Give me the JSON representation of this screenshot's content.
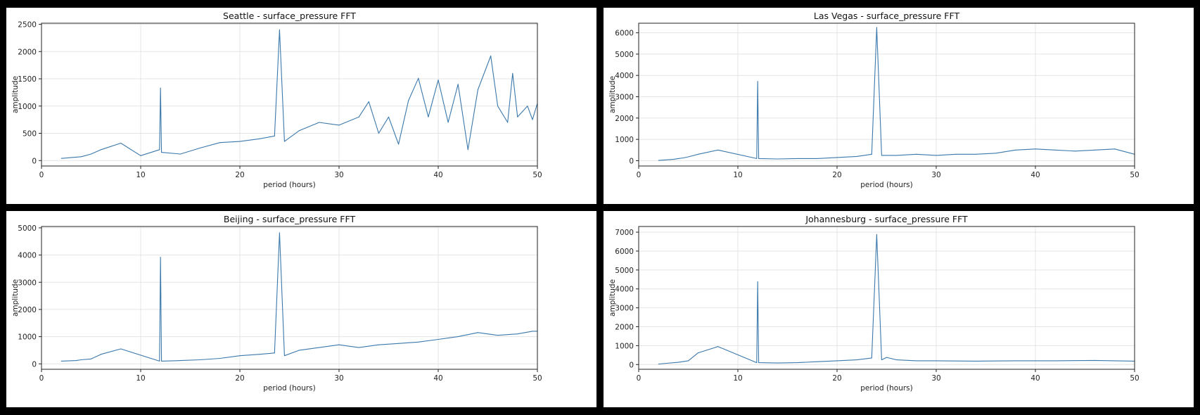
{
  "colors": {
    "line": "#3b78ab",
    "grid": "#e4e4e4",
    "axis": "#222222",
    "background": "#000000",
    "panel": "#ffffff"
  },
  "chart_data": [
    {
      "type": "line",
      "title": "Seattle - surface_pressure FFT",
      "xlabel": "period (hours)",
      "ylabel": "amplitude",
      "xlim": [
        0,
        50
      ],
      "ylim": [
        -100,
        2520
      ],
      "xticks": [
        "0",
        "10",
        "20",
        "30",
        "40",
        "50"
      ],
      "yticks": [
        "0",
        "500",
        "1000",
        "1500",
        "2000",
        "2500"
      ],
      "grid": true,
      "series": [
        {
          "x": [
            2,
            4,
            5,
            6,
            8,
            10,
            11.9,
            12,
            12.1,
            14,
            16,
            18,
            20,
            22,
            23.5,
            24,
            24.5,
            26,
            28,
            30,
            32,
            33,
            34,
            35,
            36,
            37,
            38,
            39,
            40,
            41,
            42,
            43,
            44,
            45.3,
            46,
            47,
            47.5,
            48,
            49,
            49.5,
            50
          ],
          "y": [
            40,
            70,
            120,
            200,
            320,
            90,
            200,
            1330,
            150,
            120,
            230,
            330,
            350,
            400,
            450,
            2400,
            350,
            550,
            700,
            650,
            800,
            1080,
            500,
            800,
            300,
            1100,
            1510,
            800,
            1480,
            700,
            1400,
            200,
            1300,
            1920,
            1000,
            700,
            1600,
            800,
            1000,
            750,
            1050
          ]
        }
      ]
    },
    {
      "type": "line",
      "title": "Las Vegas - surface_pressure FFT",
      "xlabel": "period (hours)",
      "ylabel": "amplitude",
      "xlim": [
        0,
        50
      ],
      "ylim": [
        -250,
        6450
      ],
      "xticks": [
        "0",
        "10",
        "20",
        "30",
        "40",
        "50"
      ],
      "yticks": [
        "0",
        "1000",
        "2000",
        "3000",
        "4000",
        "5000",
        "6000"
      ],
      "grid": true,
      "series": [
        {
          "x": [
            2,
            3.5,
            4,
            4.5,
            5,
            6,
            8,
            11.9,
            12,
            12.1,
            14,
            16,
            18,
            20,
            22,
            23.5,
            24,
            24.5,
            26,
            28,
            30,
            32,
            34,
            36,
            38,
            40,
            42,
            44,
            46,
            48,
            50
          ],
          "y": [
            10,
            60,
            100,
            130,
            180,
            300,
            500,
            100,
            3720,
            100,
            80,
            100,
            100,
            150,
            200,
            300,
            6250,
            250,
            250,
            300,
            250,
            300,
            300,
            350,
            500,
            550,
            500,
            450,
            500,
            550,
            300
          ]
        }
      ]
    },
    {
      "type": "line",
      "title": "Beijing - surface_pressure FFT",
      "xlabel": "period (hours)",
      "ylabel": "amplitude",
      "xlim": [
        0,
        50
      ],
      "ylim": [
        -200,
        5050
      ],
      "xticks": [
        "0",
        "10",
        "20",
        "30",
        "40",
        "50"
      ],
      "yticks": [
        "0",
        "1000",
        "2000",
        "3000",
        "4000",
        "5000"
      ],
      "grid": true,
      "series": [
        {
          "x": [
            2,
            3.5,
            4,
            5,
            6,
            8,
            11.9,
            12,
            12.1,
            14,
            16,
            18,
            20,
            22,
            23.5,
            24,
            24.5,
            26,
            28,
            30,
            32,
            34,
            36,
            38,
            40,
            42,
            44,
            46,
            48,
            49.5,
            50
          ],
          "y": [
            100,
            120,
            150,
            180,
            350,
            550,
            100,
            3920,
            100,
            120,
            150,
            200,
            300,
            350,
            400,
            4820,
            300,
            500,
            600,
            700,
            600,
            700,
            750,
            800,
            900,
            1000,
            1150,
            1050,
            1100,
            1200,
            1200
          ]
        }
      ]
    },
    {
      "type": "line",
      "title": "Johannesburg - surface_pressure FFT",
      "xlabel": "period (hours)",
      "ylabel": "amplitude",
      "xlim": [
        0,
        50
      ],
      "ylim": [
        -250,
        7300
      ],
      "xticks": [
        "0",
        "10",
        "20",
        "30",
        "40",
        "50"
      ],
      "yticks": [
        "0",
        "1000",
        "2000",
        "3000",
        "4000",
        "5000",
        "6000",
        "7000"
      ],
      "grid": true,
      "series": [
        {
          "x": [
            2,
            4,
            5,
            6,
            8,
            11.9,
            12,
            12.1,
            14,
            16,
            18,
            20,
            22,
            23.5,
            24,
            24.5,
            25,
            26,
            28,
            30,
            34,
            38,
            42,
            46,
            50
          ],
          "y": [
            30,
            120,
            200,
            620,
            950,
            100,
            4380,
            100,
            80,
            100,
            150,
            200,
            250,
            350,
            6880,
            250,
            380,
            250,
            200,
            200,
            180,
            200,
            200,
            220,
            180
          ]
        }
      ]
    }
  ]
}
